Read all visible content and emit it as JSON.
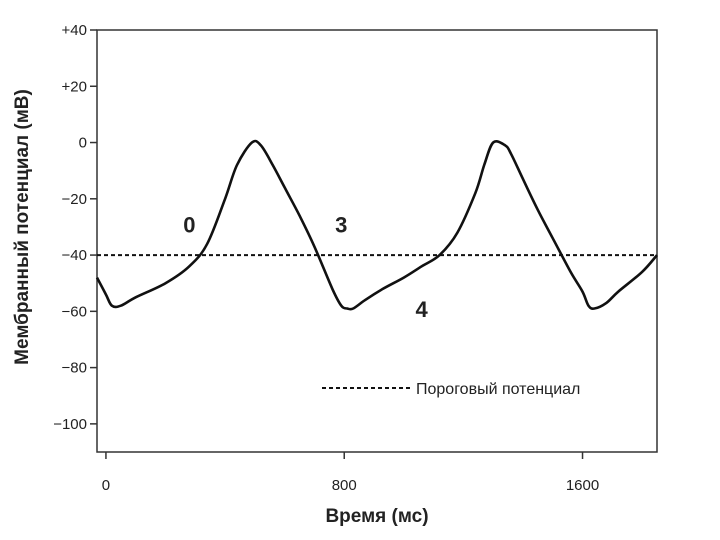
{
  "chart_data": {
    "type": "line",
    "title": "",
    "xlabel": "Время (мс)",
    "ylabel": "Мембранный потенциал (мВ)",
    "xlim": [
      -30,
      1850
    ],
    "ylim": [
      -110,
      40
    ],
    "x_ticks": [
      0,
      800,
      1600
    ],
    "x_tick_labels": [
      "0",
      "800",
      "1600"
    ],
    "y_ticks": [
      40,
      20,
      0,
      -20,
      -40,
      -60,
      -80,
      -100
    ],
    "y_tick_labels": [
      "+40",
      "+20",
      "0",
      "−20",
      "−40",
      "−60",
      "−80",
      "−100"
    ],
    "grid": false,
    "series": [
      {
        "name": "",
        "x": [
          -30,
          0,
          20,
          50,
          100,
          200,
          280,
          340,
          400,
          440,
          490,
          520,
          560,
          600,
          650,
          700,
          760,
          790,
          810,
          830,
          870,
          930,
          1000,
          1060,
          1120,
          1180,
          1240,
          1270,
          1300,
          1340,
          1360,
          1400,
          1450,
          1500,
          1560,
          1600,
          1620,
          1640,
          1680,
          1720,
          1800,
          1850
        ],
        "y": [
          -48,
          -54,
          -58,
          -58,
          -55,
          -50,
          -44,
          -36,
          -20,
          -8,
          0,
          -1,
          -8,
          -16,
          -26,
          -37,
          -52,
          -58,
          -59,
          -59,
          -56,
          -52,
          -48,
          -44,
          -40,
          -32,
          -18,
          -8,
          0,
          -1,
          -4,
          -13,
          -24,
          -34,
          -46,
          -53,
          -58,
          -59,
          -57,
          -53,
          -46,
          -40
        ]
      },
      {
        "name": "Пороговый потенциал",
        "x": [
          -30,
          1850
        ],
        "y": [
          -40,
          -40
        ],
        "style": "dashed"
      }
    ],
    "annotations": [
      {
        "text": "0",
        "x": 280,
        "y": -32
      },
      {
        "text": "3",
        "x": 790,
        "y": -32
      },
      {
        "text": "4",
        "x": 1060,
        "y": -62
      }
    ],
    "legend": {
      "text": "Пороговый потенциал",
      "placement": "bottom-right"
    }
  }
}
